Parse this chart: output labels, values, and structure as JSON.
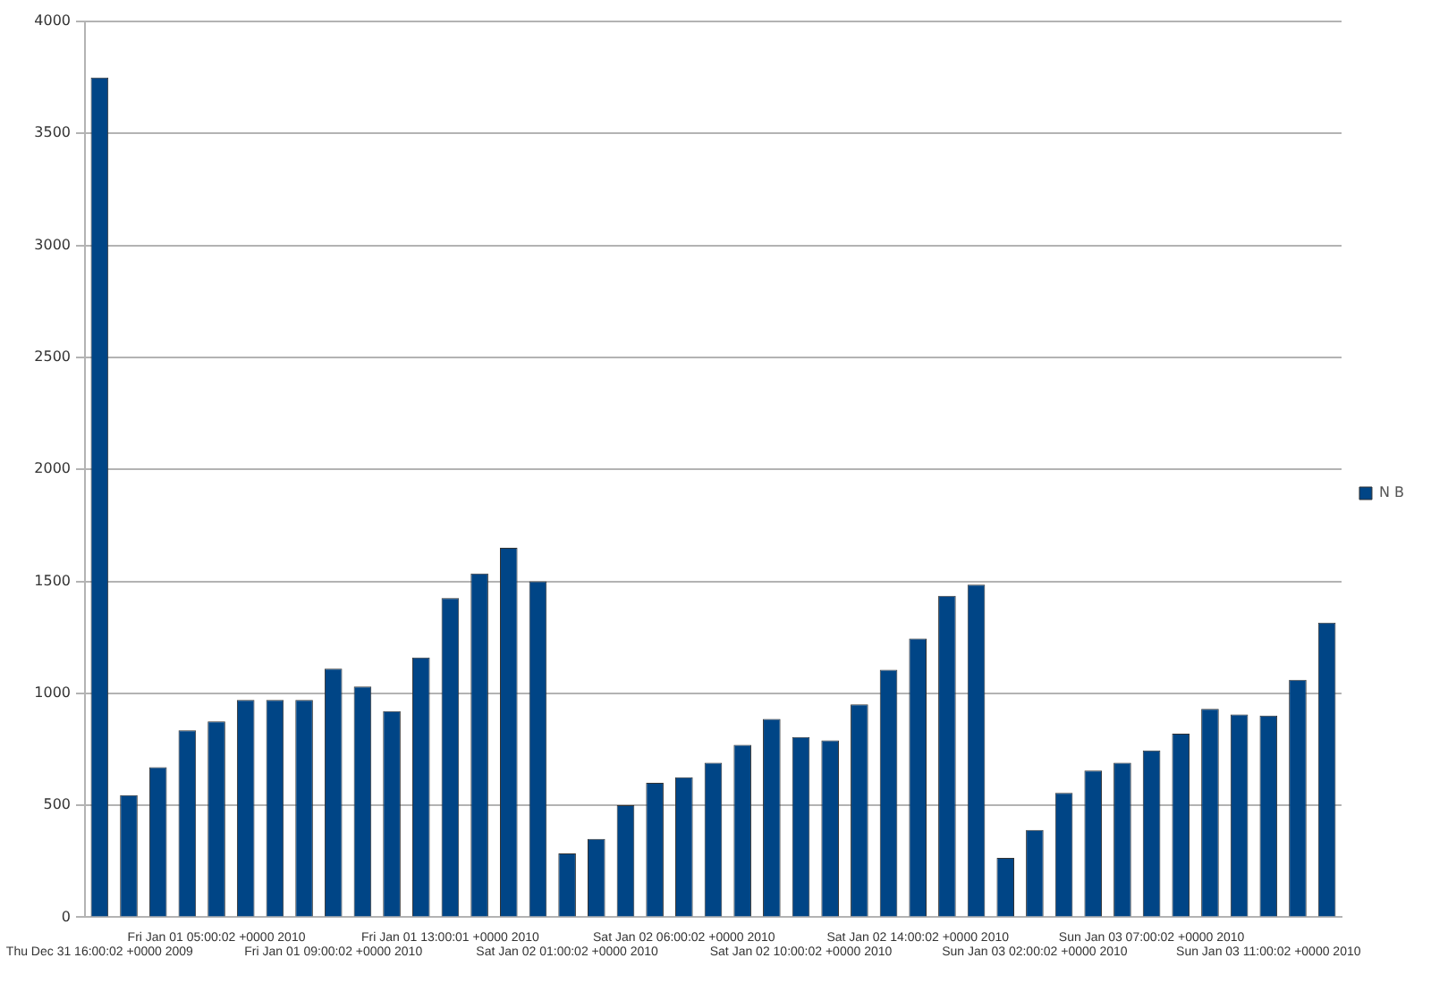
{
  "chart_data": {
    "type": "bar",
    "categories": [
      "Thu Dec 31 16:00:02 +0000 2009",
      null,
      null,
      null,
      "Fri Jan 01 05:00:02 +0000 2010",
      null,
      null,
      null,
      "Fri Jan 01 09:00:02 +0000 2010",
      null,
      null,
      null,
      "Fri Jan 01 13:00:01 +0000 2010",
      null,
      null,
      null,
      "Sat Jan 02 01:00:02 +0000 2010",
      null,
      null,
      null,
      "Sat Jan 02 06:00:02 +0000 2010",
      null,
      null,
      null,
      "Sat Jan 02 10:00:02 +0000 2010",
      null,
      null,
      null,
      "Sat Jan 02 14:00:02 +0000 2010",
      null,
      null,
      null,
      "Sun Jan 03 02:00:02 +0000 2010",
      null,
      null,
      null,
      "Sun Jan 03 07:00:02 +0000 2010",
      null,
      null,
      null,
      "Sun Jan 03 11:00:02 +0000 2010",
      null,
      null
    ],
    "series": [
      {
        "name": "N B",
        "color": "#004586",
        "values": [
          3750,
          545,
          670,
          835,
          875,
          970,
          970,
          970,
          1110,
          1030,
          920,
          1160,
          1425,
          1535,
          1650,
          1500,
          285,
          350,
          500,
          600,
          625,
          690,
          770,
          885,
          805,
          790,
          950,
          1105,
          1245,
          1435,
          1485,
          265,
          390,
          555,
          655,
          690,
          745,
          820,
          930,
          905,
          900,
          1060,
          1315
        ]
      }
    ],
    "ylim": [
      0,
      4000
    ],
    "yticks": [
      0,
      500,
      1000,
      1500,
      2000,
      2500,
      3000,
      3500,
      4000
    ],
    "grid": "y",
    "legend": "right"
  }
}
